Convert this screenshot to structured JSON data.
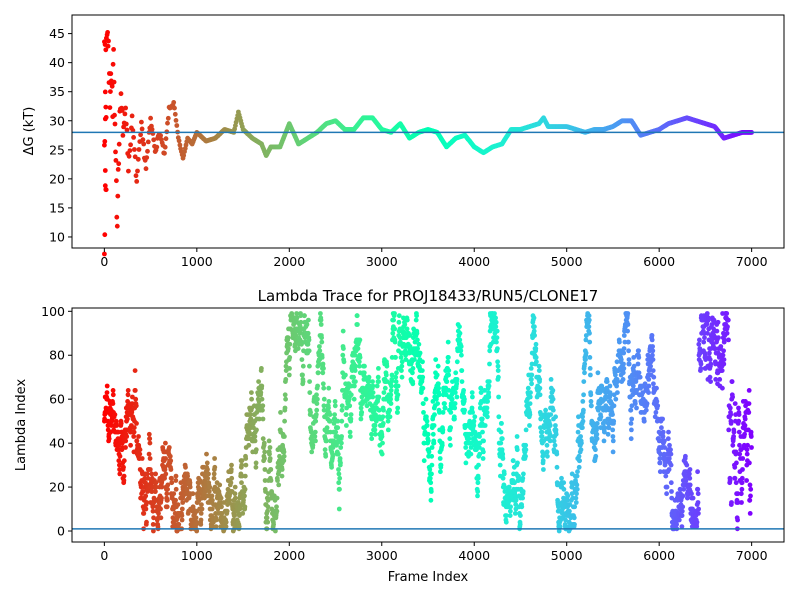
{
  "chart_data": [
    {
      "type": "scatter",
      "title": "",
      "xlabel": "",
      "ylabel": "ΔG (kT)",
      "xlim": [
        -350,
        7350
      ],
      "ylim": [
        8.1,
        48.2
      ],
      "xticks": [
        0,
        1000,
        2000,
        3000,
        4000,
        5000,
        6000,
        7000
      ],
      "yticks": [
        10,
        15,
        20,
        25,
        30,
        35,
        40,
        45
      ],
      "hline": {
        "y": 28.0,
        "color": "#1f77b4"
      },
      "colormap": "rainbow (red at frame 0 → violet at frame 7000)",
      "grid": false,
      "series": [
        {
          "points": [
            [
              0,
              10
            ],
            [
              10,
              16
            ],
            [
              20,
              18
            ],
            [
              0,
              26
            ],
            [
              10,
              30
            ],
            [
              20,
              32
            ],
            [
              0,
              42
            ],
            [
              30,
              46
            ],
            [
              40,
              44
            ],
            [
              50,
              38
            ],
            [
              60,
              34
            ],
            [
              70,
              40
            ],
            [
              80,
              36
            ],
            [
              90,
              33
            ],
            [
              100,
              42
            ],
            [
              110,
              30
            ],
            [
              120,
              24
            ],
            [
              130,
              18
            ],
            [
              140,
              13.5
            ],
            [
              150,
              22
            ],
            [
              160,
              28
            ],
            [
              180,
              35
            ],
            [
              200,
              27
            ],
            [
              230,
              33
            ],
            [
              260,
              22
            ],
            [
              300,
              30
            ],
            [
              350,
              19.5
            ],
            [
              400,
              29
            ],
            [
              450,
              22
            ],
            [
              500,
              30
            ],
            [
              550,
              25
            ],
            [
              600,
              28
            ],
            [
              650,
              24
            ],
            [
              700,
              32
            ],
            [
              750,
              33
            ],
            [
              800,
              27
            ],
            [
              850,
              23.5
            ],
            [
              900,
              27
            ],
            [
              950,
              26
            ],
            [
              1000,
              28
            ],
            [
              1100,
              26.5
            ],
            [
              1200,
              27
            ],
            [
              1300,
              28.5
            ],
            [
              1400,
              28
            ],
            [
              1450,
              31.5
            ],
            [
              1500,
              28.5
            ],
            [
              1600,
              27
            ],
            [
              1700,
              26
            ],
            [
              1750,
              24
            ],
            [
              1800,
              25.5
            ],
            [
              1900,
              25.5
            ],
            [
              2000,
              29.5
            ],
            [
              2100,
              26
            ],
            [
              2200,
              27
            ],
            [
              2300,
              28
            ],
            [
              2400,
              29.5
            ],
            [
              2500,
              30
            ],
            [
              2600,
              28.5
            ],
            [
              2700,
              28.5
            ],
            [
              2800,
              30.5
            ],
            [
              2900,
              30.5
            ],
            [
              3000,
              28.5
            ],
            [
              3100,
              28
            ],
            [
              3200,
              29.5
            ],
            [
              3300,
              27
            ],
            [
              3400,
              28
            ],
            [
              3500,
              28.5
            ],
            [
              3600,
              28
            ],
            [
              3700,
              25.5
            ],
            [
              3800,
              27
            ],
            [
              3900,
              27.5
            ],
            [
              4000,
              25.5
            ],
            [
              4100,
              24.5
            ],
            [
              4200,
              25.5
            ],
            [
              4300,
              26
            ],
            [
              4400,
              28.5
            ],
            [
              4500,
              28.5
            ],
            [
              4600,
              29
            ],
            [
              4700,
              29.5
            ],
            [
              4750,
              30.5
            ],
            [
              4800,
              29
            ],
            [
              4900,
              29
            ],
            [
              5000,
              29
            ],
            [
              5100,
              28.5
            ],
            [
              5200,
              28
            ],
            [
              5300,
              28.5
            ],
            [
              5400,
              28.5
            ],
            [
              5500,
              29
            ],
            [
              5600,
              30
            ],
            [
              5700,
              30
            ],
            [
              5800,
              27.5
            ],
            [
              5900,
              28
            ],
            [
              6000,
              28.5
            ],
            [
              6100,
              29.5
            ],
            [
              6200,
              30
            ],
            [
              6300,
              30.5
            ],
            [
              6400,
              30
            ],
            [
              6500,
              29.5
            ],
            [
              6600,
              29
            ],
            [
              6700,
              27
            ],
            [
              6800,
              27.5
            ],
            [
              6900,
              28
            ],
            [
              7000,
              28
            ]
          ]
        }
      ]
    },
    {
      "type": "scatter",
      "title": "Lambda Trace for PROJ18433/RUN5/CLONE17",
      "xlabel": "Frame Index",
      "ylabel": "Lambda Index",
      "xlim": [
        -350,
        7350
      ],
      "ylim": [
        -5,
        101.5
      ],
      "xticks": [
        0,
        1000,
        2000,
        3000,
        4000,
        5000,
        6000,
        7000
      ],
      "yticks": [
        0,
        20,
        40,
        60,
        80,
        100
      ],
      "hline": {
        "y": 1,
        "color": "#1f77b4"
      },
      "colormap": "rainbow (red at frame 0 → violet at frame 7000)",
      "grid": false,
      "series": [
        {
          "description_points": "dense random walk of lambda index between 0 and 99 across frames 0–7000",
          "x_range": [
            0,
            7000
          ],
          "y_range": [
            0,
            99
          ]
        }
      ]
    }
  ]
}
